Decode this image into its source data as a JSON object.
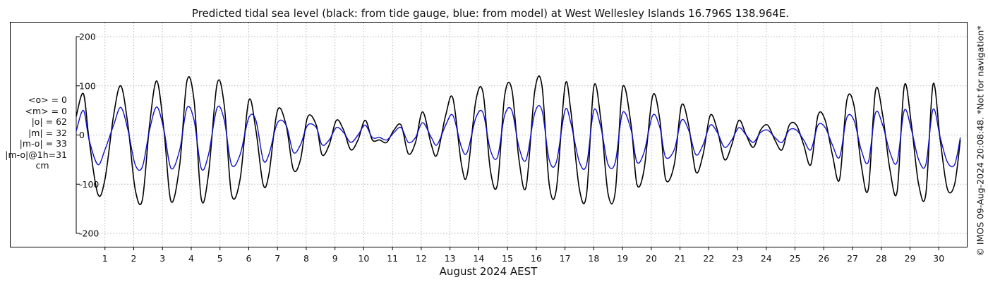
{
  "title": "Predicted tidal sea level (black: from tide gauge, blue: from model) at West Wellesley Islands 16.796S 138.964E.",
  "stats": {
    "mean_obs": "<o> = 0",
    "mean_model": "<m> = 0",
    "abs_obs": "|o| = 62",
    "abs_model": "|m| = 32",
    "abs_diff": "|m-o| = 33",
    "abs_diff_lag": "|m-o|@1h=31",
    "unit": "cm"
  },
  "credit": "© IMOS 09-Aug-2024 20:08:48. *Not for navigation*",
  "chart_data": {
    "type": "line",
    "title": "Predicted tidal sea level (black: from tide gauge, blue: from model) at West Wellesley Islands 16.796S 138.964E.",
    "xlabel": "August 2024 AEST",
    "ylabel": "",
    "x_range": [
      0,
      31.0
    ],
    "ylim": [
      -200,
      200
    ],
    "x_ticks": [
      "1",
      "2",
      "3",
      "4",
      "5",
      "6",
      "7",
      "8",
      "9",
      "10",
      "11",
      "12",
      "13",
      "14",
      "15",
      "16",
      "17",
      "18",
      "19",
      "20",
      "21",
      "22",
      "23",
      "24",
      "25",
      "26",
      "27",
      "28",
      "29",
      "30"
    ],
    "y_ticks": [
      200,
      100,
      0,
      -100,
      -200
    ],
    "grid": true,
    "colors": {
      "tide_gauge": "#000000",
      "model": "#1010c8"
    },
    "series": [
      {
        "name": "tide gauge",
        "color": "#000000",
        "points": [
          [
            0.0,
            38
          ],
          [
            0.25,
            84
          ],
          [
            0.45,
            -10
          ],
          [
            0.75,
            -120
          ],
          [
            1.0,
            -90
          ],
          [
            1.3,
            40
          ],
          [
            1.55,
            100
          ],
          [
            1.8,
            20
          ],
          [
            2.05,
            -110
          ],
          [
            2.3,
            -132
          ],
          [
            2.55,
            20
          ],
          [
            2.8,
            110
          ],
          [
            3.05,
            10
          ],
          [
            3.3,
            -135
          ],
          [
            3.6,
            -60
          ],
          [
            3.85,
            110
          ],
          [
            4.1,
            70
          ],
          [
            4.35,
            -130
          ],
          [
            4.6,
            -80
          ],
          [
            4.9,
            104
          ],
          [
            5.15,
            60
          ],
          [
            5.4,
            -120
          ],
          [
            5.7,
            -90
          ],
          [
            6.0,
            70
          ],
          [
            6.25,
            10
          ],
          [
            6.5,
            -100
          ],
          [
            6.7,
            -80
          ],
          [
            7.0,
            50
          ],
          [
            7.3,
            20
          ],
          [
            7.55,
            -70
          ],
          [
            7.8,
            -50
          ],
          [
            8.05,
            37
          ],
          [
            8.35,
            20
          ],
          [
            8.55,
            -40
          ],
          [
            8.8,
            -20
          ],
          [
            9.05,
            30
          ],
          [
            9.3,
            10
          ],
          [
            9.55,
            -30
          ],
          [
            9.8,
            -10
          ],
          [
            10.05,
            30
          ],
          [
            10.3,
            -10
          ],
          [
            10.55,
            -10
          ],
          [
            10.8,
            -15
          ],
          [
            11.05,
            10
          ],
          [
            11.3,
            20
          ],
          [
            11.55,
            -38
          ],
          [
            11.8,
            -15
          ],
          [
            12.05,
            47
          ],
          [
            12.35,
            -20
          ],
          [
            12.55,
            -40
          ],
          [
            12.85,
            40
          ],
          [
            13.1,
            75
          ],
          [
            13.4,
            -60
          ],
          [
            13.6,
            -80
          ],
          [
            13.9,
            70
          ],
          [
            14.15,
            86
          ],
          [
            14.4,
            -70
          ],
          [
            14.65,
            -100
          ],
          [
            14.9,
            80
          ],
          [
            15.15,
            93
          ],
          [
            15.4,
            -50
          ],
          [
            15.65,
            -105
          ],
          [
            15.95,
            90
          ],
          [
            16.2,
            100
          ],
          [
            16.45,
            -100
          ],
          [
            16.7,
            -110
          ],
          [
            17.0,
            100
          ],
          [
            17.2,
            50
          ],
          [
            17.5,
            -110
          ],
          [
            17.75,
            -120
          ],
          [
            18.0,
            98
          ],
          [
            18.25,
            30
          ],
          [
            18.5,
            -120
          ],
          [
            18.75,
            -115
          ],
          [
            19.0,
            96
          ],
          [
            19.3,
            20
          ],
          [
            19.5,
            -100
          ],
          [
            19.75,
            -70
          ],
          [
            20.05,
            80
          ],
          [
            20.3,
            30
          ],
          [
            20.5,
            -90
          ],
          [
            20.8,
            -60
          ],
          [
            21.05,
            60
          ],
          [
            21.3,
            20
          ],
          [
            21.55,
            -75
          ],
          [
            21.8,
            -40
          ],
          [
            22.05,
            40
          ],
          [
            22.3,
            10
          ],
          [
            22.55,
            -50
          ],
          [
            22.8,
            -20
          ],
          [
            23.05,
            30
          ],
          [
            23.3,
            0
          ],
          [
            23.55,
            -25
          ],
          [
            23.8,
            10
          ],
          [
            24.05,
            20
          ],
          [
            24.3,
            -10
          ],
          [
            24.55,
            -30
          ],
          [
            24.8,
            20
          ],
          [
            25.05,
            20
          ],
          [
            25.3,
            -20
          ],
          [
            25.55,
            -60
          ],
          [
            25.8,
            40
          ],
          [
            26.05,
            30
          ],
          [
            26.3,
            -40
          ],
          [
            26.55,
            -90
          ],
          [
            26.8,
            70
          ],
          [
            27.05,
            60
          ],
          [
            27.3,
            -60
          ],
          [
            27.55,
            -110
          ],
          [
            27.8,
            90
          ],
          [
            28.05,
            40
          ],
          [
            28.3,
            -70
          ],
          [
            28.55,
            -115
          ],
          [
            28.8,
            100
          ],
          [
            29.05,
            20
          ],
          [
            29.3,
            -100
          ],
          [
            29.55,
            -120
          ],
          [
            29.8,
            103
          ],
          [
            30.05,
            -10
          ],
          [
            30.3,
            -110
          ],
          [
            30.55,
            -100
          ],
          [
            30.75,
            -10
          ]
        ]
      },
      {
        "name": "model",
        "color": "#1010c8",
        "points": [
          [
            0.0,
            8
          ],
          [
            0.25,
            50
          ],
          [
            0.45,
            -10
          ],
          [
            0.75,
            -60
          ],
          [
            1.0,
            -30
          ],
          [
            1.3,
            20
          ],
          [
            1.55,
            56
          ],
          [
            1.8,
            10
          ],
          [
            2.05,
            -60
          ],
          [
            2.3,
            -65
          ],
          [
            2.55,
            10
          ],
          [
            2.8,
            57
          ],
          [
            3.05,
            10
          ],
          [
            3.3,
            -68
          ],
          [
            3.6,
            -30
          ],
          [
            3.85,
            55
          ],
          [
            4.1,
            30
          ],
          [
            4.35,
            -68
          ],
          [
            4.6,
            -40
          ],
          [
            4.9,
            55
          ],
          [
            5.15,
            30
          ],
          [
            5.4,
            -60
          ],
          [
            5.7,
            -40
          ],
          [
            6.0,
            35
          ],
          [
            6.25,
            30
          ],
          [
            6.5,
            -50
          ],
          [
            6.7,
            -40
          ],
          [
            7.0,
            25
          ],
          [
            7.3,
            20
          ],
          [
            7.55,
            -35
          ],
          [
            7.8,
            -20
          ],
          [
            8.05,
            20
          ],
          [
            8.35,
            15
          ],
          [
            8.55,
            -20
          ],
          [
            8.8,
            -10
          ],
          [
            9.05,
            15
          ],
          [
            9.3,
            5
          ],
          [
            9.55,
            -15
          ],
          [
            9.8,
            0
          ],
          [
            10.05,
            20
          ],
          [
            10.3,
            -5
          ],
          [
            10.55,
            -5
          ],
          [
            10.8,
            -10
          ],
          [
            11.05,
            5
          ],
          [
            11.3,
            15
          ],
          [
            11.55,
            -15
          ],
          [
            11.8,
            -5
          ],
          [
            12.05,
            25
          ],
          [
            12.35,
            -5
          ],
          [
            12.55,
            -20
          ],
          [
            12.85,
            20
          ],
          [
            13.1,
            40
          ],
          [
            13.4,
            -25
          ],
          [
            13.6,
            -35
          ],
          [
            13.9,
            35
          ],
          [
            14.15,
            45
          ],
          [
            14.4,
            -30
          ],
          [
            14.65,
            -45
          ],
          [
            14.9,
            40
          ],
          [
            15.15,
            50
          ],
          [
            15.4,
            -25
          ],
          [
            15.65,
            -50
          ],
          [
            15.95,
            45
          ],
          [
            16.2,
            50
          ],
          [
            16.45,
            -50
          ],
          [
            16.7,
            -55
          ],
          [
            17.0,
            50
          ],
          [
            17.2,
            25
          ],
          [
            17.5,
            -55
          ],
          [
            17.75,
            -60
          ],
          [
            18.0,
            50
          ],
          [
            18.25,
            15
          ],
          [
            18.5,
            -60
          ],
          [
            18.75,
            -55
          ],
          [
            19.0,
            45
          ],
          [
            19.3,
            10
          ],
          [
            19.5,
            -55
          ],
          [
            19.75,
            -35
          ],
          [
            20.05,
            40
          ],
          [
            20.3,
            15
          ],
          [
            20.5,
            -45
          ],
          [
            20.8,
            -30
          ],
          [
            21.05,
            30
          ],
          [
            21.3,
            10
          ],
          [
            21.55,
            -40
          ],
          [
            21.8,
            -20
          ],
          [
            22.05,
            20
          ],
          [
            22.3,
            5
          ],
          [
            22.55,
            -25
          ],
          [
            22.8,
            -10
          ],
          [
            23.05,
            15
          ],
          [
            23.3,
            0
          ],
          [
            23.55,
            -15
          ],
          [
            23.8,
            5
          ],
          [
            24.05,
            10
          ],
          [
            24.3,
            -5
          ],
          [
            24.55,
            -15
          ],
          [
            24.8,
            10
          ],
          [
            25.05,
            10
          ],
          [
            25.3,
            -10
          ],
          [
            25.55,
            -30
          ],
          [
            25.8,
            20
          ],
          [
            26.05,
            15
          ],
          [
            26.3,
            -20
          ],
          [
            26.55,
            -45
          ],
          [
            26.8,
            35
          ],
          [
            27.05,
            30
          ],
          [
            27.3,
            -30
          ],
          [
            27.55,
            -55
          ],
          [
            27.8,
            45
          ],
          [
            28.05,
            20
          ],
          [
            28.3,
            -35
          ],
          [
            28.55,
            -55
          ],
          [
            28.8,
            50
          ],
          [
            29.05,
            10
          ],
          [
            29.3,
            -50
          ],
          [
            29.55,
            -60
          ],
          [
            29.8,
            52
          ],
          [
            30.05,
            -5
          ],
          [
            30.3,
            -55
          ],
          [
            30.55,
            -60
          ],
          [
            30.75,
            -5
          ]
        ]
      }
    ]
  }
}
